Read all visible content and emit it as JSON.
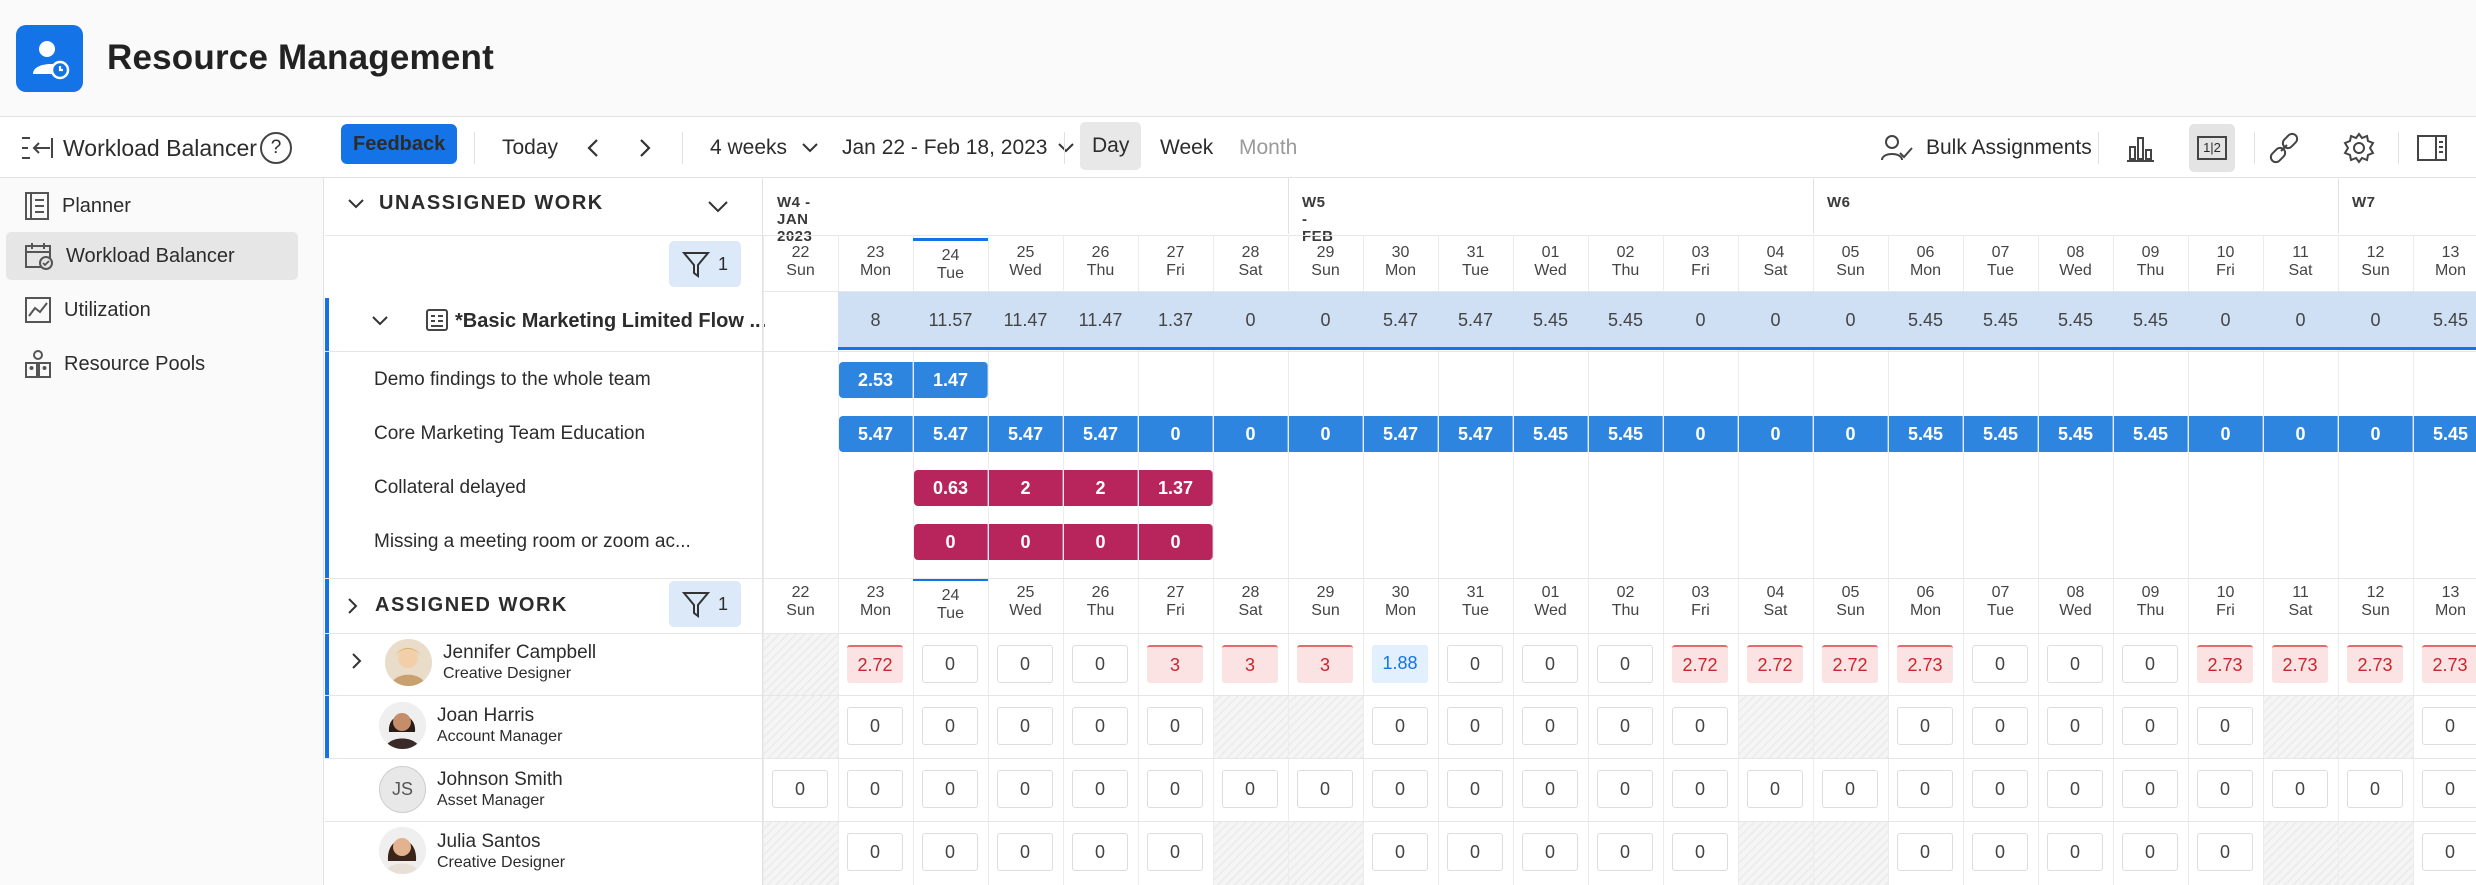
{
  "app": {
    "title": "Resource Management"
  },
  "toolbar": {
    "view_name": "Workload Balancer",
    "help": "?",
    "feedback": "Feedback",
    "today": "Today",
    "duration": "4 weeks",
    "date_range": "Jan 22 - Feb 18, 2023",
    "day": "Day",
    "week": "Week",
    "month": "Month",
    "bulk": "Bulk Assignments",
    "toggle_12": "1|2"
  },
  "sidebar": {
    "items": [
      {
        "label": "Planner",
        "icon": "planner-icon"
      },
      {
        "label": "Workload Balancer",
        "icon": "workload-balancer-icon"
      },
      {
        "label": "Utilization",
        "icon": "utilization-icon"
      },
      {
        "label": "Resource Pools",
        "icon": "resource-pools-icon"
      }
    ]
  },
  "unassigned": {
    "title": "UNASSIGNED WORK",
    "filter_count": "1",
    "project": "*Basic Marketing Limited Flow ...",
    "project_totals": [
      "",
      "8",
      "11.57",
      "11.47",
      "11.47",
      "1.37",
      "0",
      "0",
      "5.47",
      "5.47",
      "5.45",
      "5.45",
      "0",
      "0",
      "0",
      "5.45",
      "5.45",
      "5.45",
      "5.45",
      "0",
      "0",
      "0",
      "5.45"
    ],
    "tasks": [
      {
        "name": "Demo findings to the whole team",
        "color": "blue",
        "start": 1,
        "values": [
          "2.53",
          "1.47"
        ]
      },
      {
        "name": "Core Marketing Team Education",
        "color": "blue",
        "start": 1,
        "values": [
          "5.47",
          "5.47",
          "5.47",
          "5.47",
          "0",
          "0",
          "0",
          "5.47",
          "5.47",
          "5.45",
          "5.45",
          "0",
          "0",
          "0",
          "5.45",
          "5.45",
          "5.45",
          "5.45",
          "0",
          "0",
          "0",
          "5.45"
        ]
      },
      {
        "name": "Collateral delayed",
        "color": "red",
        "start": 2,
        "values": [
          "0.63",
          "2",
          "2",
          "1.37"
        ]
      },
      {
        "name": "Missing a meeting room or zoom ac...",
        "color": "red",
        "start": 2,
        "values": [
          "0",
          "0",
          "0",
          "0"
        ]
      }
    ]
  },
  "assigned": {
    "title": "ASSIGNED WORK",
    "filter_count": "1",
    "people": [
      {
        "name": "Jennifer Campbell",
        "role": "Creative Designer",
        "initials": "",
        "cells": [
          "h",
          "2.72",
          "0",
          "0",
          "0",
          "3",
          "3",
          "3",
          "1.88",
          "0",
          "0",
          "0",
          "2.72",
          "2.72",
          "2.72",
          "2.73",
          "0",
          "0",
          "0",
          "2.73",
          "2.73",
          "2.73",
          "2.73"
        ],
        "status": [
          "h",
          "over",
          "",
          "",
          "",
          "over",
          "over",
          "over",
          "under",
          "",
          "",
          "",
          "over",
          "over",
          "over",
          "over",
          "",
          "",
          "",
          "over",
          "over",
          "over",
          "over"
        ]
      },
      {
        "name": "Joan Harris",
        "role": "Account Manager",
        "initials": "",
        "cells": [
          "h",
          "0",
          "0",
          "0",
          "0",
          "0",
          "h",
          "h",
          "0",
          "0",
          "0",
          "0",
          "0",
          "h",
          "h",
          "0",
          "0",
          "0",
          "0",
          "0",
          "h",
          "h",
          "0"
        ],
        "status": []
      },
      {
        "name": "Johnson Smith",
        "role": "Asset Manager",
        "initials": "JS",
        "cells": [
          "0",
          "0",
          "0",
          "0",
          "0",
          "0",
          "0",
          "0",
          "0",
          "0",
          "0",
          "0",
          "0",
          "0",
          "0",
          "0",
          "0",
          "0",
          "0",
          "0",
          "0",
          "0",
          "0"
        ],
        "status": []
      },
      {
        "name": "Julia Santos",
        "role": "Creative Designer",
        "initials": "",
        "cells": [
          "h",
          "0",
          "0",
          "0",
          "0",
          "0",
          "h",
          "h",
          "0",
          "0",
          "0",
          "0",
          "0",
          "h",
          "h",
          "0",
          "0",
          "0",
          "0",
          "0",
          "h",
          "h",
          "0"
        ],
        "status": []
      }
    ]
  },
  "calendar": {
    "weeks": [
      "W4 - JAN 2023",
      "W5 - FEB",
      "W6",
      "W7"
    ],
    "days": [
      {
        "num": "22",
        "dow": "Sun"
      },
      {
        "num": "23",
        "dow": "Mon"
      },
      {
        "num": "24",
        "dow": "Tue",
        "today": true
      },
      {
        "num": "25",
        "dow": "Wed"
      },
      {
        "num": "26",
        "dow": "Thu"
      },
      {
        "num": "27",
        "dow": "Fri"
      },
      {
        "num": "28",
        "dow": "Sat"
      },
      {
        "num": "29",
        "dow": "Sun"
      },
      {
        "num": "30",
        "dow": "Mon"
      },
      {
        "num": "31",
        "dow": "Tue"
      },
      {
        "num": "01",
        "dow": "Wed"
      },
      {
        "num": "02",
        "dow": "Thu"
      },
      {
        "num": "03",
        "dow": "Fri"
      },
      {
        "num": "04",
        "dow": "Sat"
      },
      {
        "num": "05",
        "dow": "Sun"
      },
      {
        "num": "06",
        "dow": "Mon"
      },
      {
        "num": "07",
        "dow": "Tue"
      },
      {
        "num": "08",
        "dow": "Wed"
      },
      {
        "num": "09",
        "dow": "Thu"
      },
      {
        "num": "10",
        "dow": "Fri"
      },
      {
        "num": "11",
        "dow": "Sat"
      },
      {
        "num": "12",
        "dow": "Sun"
      },
      {
        "num": "13",
        "dow": "Mon"
      }
    ]
  },
  "colors": {
    "accent": "#1473e6",
    "bar_blue": "#2d85e0",
    "bar_red": "#b8245c",
    "over": "#fbe3e3"
  }
}
